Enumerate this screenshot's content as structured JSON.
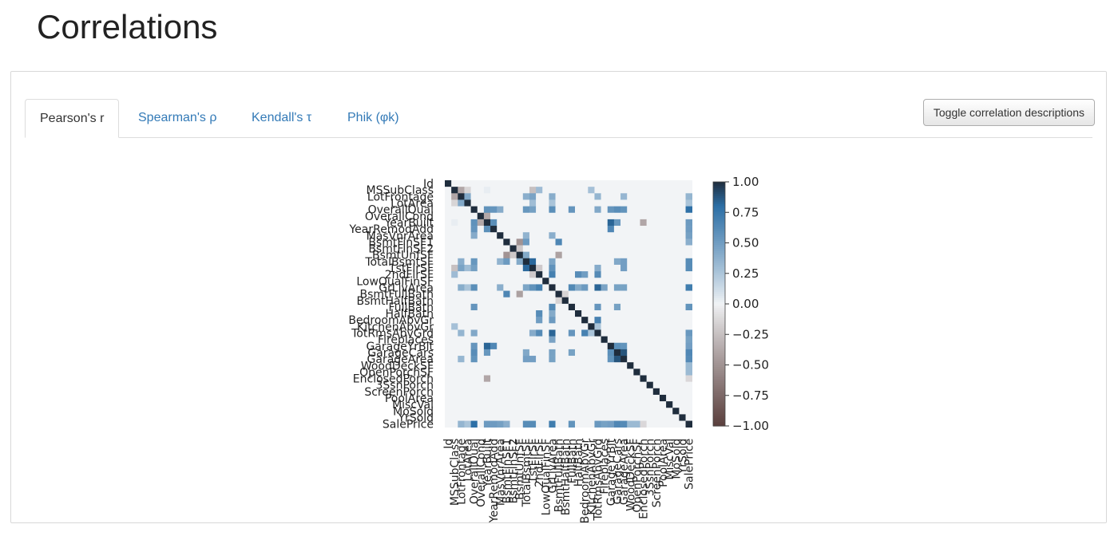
{
  "page": {
    "title": "Correlations"
  },
  "tabs": [
    {
      "label": "Pearson's r",
      "active": true
    },
    {
      "label": "Spearman's ρ",
      "active": false
    },
    {
      "label": "Kendall's τ",
      "active": false
    },
    {
      "label": "Phik (φk)",
      "active": false
    }
  ],
  "toggle_button": {
    "label": "Toggle correlation descriptions"
  },
  "chart_data": {
    "type": "heatmap",
    "title": "",
    "variables": [
      "Id",
      "MSSubClass",
      "LotFrontage",
      "LotArea",
      "OverallQual",
      "OverallCond",
      "YearBuilt",
      "YearRemodAdd",
      "MasVnrArea",
      "BsmtFinSF1",
      "BsmtFinSF2",
      "BsmtUnfSF",
      "TotalBsmtSF",
      "1stFlrSF",
      "2ndFlrSF",
      "LowQualFinSF",
      "GrLivArea",
      "BsmtFullBath",
      "BsmtHalfBath",
      "FullBath",
      "HalfBath",
      "BedroomAbvGr",
      "KitchenAbvGr",
      "TotRmsAbvGrd",
      "Fireplaces",
      "GarageYrBlt",
      "GarageCars",
      "GarageArea",
      "WoodDeckSF",
      "OpenPorchSF",
      "EnclosedPorch",
      "3SsnPorch",
      "ScreenPorch",
      "PoolArea",
      "MiscVal",
      "MoSold",
      "YrSold",
      "SalePrice"
    ],
    "correlations": [
      {
        "a": "MSSubClass",
        "b": "LotFrontage",
        "r": -0.39
      },
      {
        "a": "MSSubClass",
        "b": "LotArea",
        "r": -0.14
      },
      {
        "a": "MSSubClass",
        "b": "YearBuilt",
        "r": 0.03
      },
      {
        "a": "MSSubClass",
        "b": "1stFlrSF",
        "r": -0.25
      },
      {
        "a": "MSSubClass",
        "b": "2ndFlrSF",
        "r": 0.31
      },
      {
        "a": "MSSubClass",
        "b": "KitchenAbvGr",
        "r": 0.28
      },
      {
        "a": "LotFrontage",
        "b": "LotArea",
        "r": 0.43
      },
      {
        "a": "LotFrontage",
        "b": "TotalBsmtSF",
        "r": 0.39
      },
      {
        "a": "LotFrontage",
        "b": "1stFlrSF",
        "r": 0.46
      },
      {
        "a": "LotFrontage",
        "b": "GrLivArea",
        "r": 0.4
      },
      {
        "a": "LotFrontage",
        "b": "TotRmsAbvGrd",
        "r": 0.35
      },
      {
        "a": "LotFrontage",
        "b": "GarageArea",
        "r": 0.34
      },
      {
        "a": "LotFrontage",
        "b": "SalePrice",
        "r": 0.35
      },
      {
        "a": "LotArea",
        "b": "1stFlrSF",
        "r": 0.3
      },
      {
        "a": "LotArea",
        "b": "GrLivArea",
        "r": 0.26
      },
      {
        "a": "LotArea",
        "b": "SalePrice",
        "r": 0.26
      },
      {
        "a": "OverallQual",
        "b": "YearBuilt",
        "r": 0.57
      },
      {
        "a": "OverallQual",
        "b": "YearRemodAdd",
        "r": 0.55
      },
      {
        "a": "OverallQual",
        "b": "MasVnrArea",
        "r": 0.41
      },
      {
        "a": "OverallQual",
        "b": "TotalBsmtSF",
        "r": 0.54
      },
      {
        "a": "OverallQual",
        "b": "1stFlrSF",
        "r": 0.48
      },
      {
        "a": "OverallQual",
        "b": "GrLivArea",
        "r": 0.59
      },
      {
        "a": "OverallQual",
        "b": "FullBath",
        "r": 0.55
      },
      {
        "a": "OverallQual",
        "b": "TotRmsAbvGrd",
        "r": 0.43
      },
      {
        "a": "OverallQual",
        "b": "GarageYrBlt",
        "r": 0.55
      },
      {
        "a": "OverallQual",
        "b": "GarageCars",
        "r": 0.6
      },
      {
        "a": "OverallQual",
        "b": "GarageArea",
        "r": 0.56
      },
      {
        "a": "OverallQual",
        "b": "SalePrice",
        "r": 0.79
      },
      {
        "a": "OverallCond",
        "b": "YearBuilt",
        "r": -0.38
      },
      {
        "a": "YearBuilt",
        "b": "YearRemodAdd",
        "r": 0.59
      },
      {
        "a": "YearBuilt",
        "b": "GarageYrBlt",
        "r": 0.83
      },
      {
        "a": "YearBuilt",
        "b": "GarageCars",
        "r": 0.54
      },
      {
        "a": "YearBuilt",
        "b": "EnclosedPorch",
        "r": -0.39
      },
      {
        "a": "YearBuilt",
        "b": "SalePrice",
        "r": 0.52
      },
      {
        "a": "YearRemodAdd",
        "b": "GarageYrBlt",
        "r": 0.64
      },
      {
        "a": "YearRemodAdd",
        "b": "SalePrice",
        "r": 0.51
      },
      {
        "a": "MasVnrArea",
        "b": "TotalBsmtSF",
        "r": 0.36
      },
      {
        "a": "MasVnrArea",
        "b": "GrLivArea",
        "r": 0.39
      },
      {
        "a": "MasVnrArea",
        "b": "SalePrice",
        "r": 0.48
      },
      {
        "a": "BsmtFinSF1",
        "b": "BsmtUnfSF",
        "r": -0.5
      },
      {
        "a": "BsmtFinSF1",
        "b": "TotalBsmtSF",
        "r": 0.52
      },
      {
        "a": "BsmtFinSF1",
        "b": "BsmtFullBath",
        "r": 0.65
      },
      {
        "a": "BsmtFinSF1",
        "b": "SalePrice",
        "r": 0.39
      },
      {
        "a": "BsmtFinSF2",
        "b": "BsmtUnfSF",
        "r": -0.21
      },
      {
        "a": "BsmtUnfSF",
        "b": "TotalBsmtSF",
        "r": 0.42
      },
      {
        "a": "BsmtUnfSF",
        "b": "BsmtFullBath",
        "r": -0.42
      },
      {
        "a": "TotalBsmtSF",
        "b": "1stFlrSF",
        "r": 0.82
      },
      {
        "a": "TotalBsmtSF",
        "b": "GrLivArea",
        "r": 0.45
      },
      {
        "a": "TotalBsmtSF",
        "b": "GarageCars",
        "r": 0.43
      },
      {
        "a": "TotalBsmtSF",
        "b": "GarageArea",
        "r": 0.49
      },
      {
        "a": "TotalBsmtSF",
        "b": "SalePrice",
        "r": 0.61
      },
      {
        "a": "1stFlrSF",
        "b": "2ndFlrSF",
        "r": -0.2
      },
      {
        "a": "1stFlrSF",
        "b": "GrLivArea",
        "r": 0.57
      },
      {
        "a": "1stFlrSF",
        "b": "TotRmsAbvGrd",
        "r": 0.41
      },
      {
        "a": "1stFlrSF",
        "b": "GarageArea",
        "r": 0.49
      },
      {
        "a": "1stFlrSF",
        "b": "SalePrice",
        "r": 0.61
      },
      {
        "a": "2ndFlrSF",
        "b": "GrLivArea",
        "r": 0.69
      },
      {
        "a": "2ndFlrSF",
        "b": "HalfBath",
        "r": 0.61
      },
      {
        "a": "2ndFlrSF",
        "b": "BedroomAbvGr",
        "r": 0.5
      },
      {
        "a": "2ndFlrSF",
        "b": "TotRmsAbvGrd",
        "r": 0.62
      },
      {
        "a": "GrLivArea",
        "b": "FullBath",
        "r": 0.63
      },
      {
        "a": "GrLivArea",
        "b": "HalfBath",
        "r": 0.42
      },
      {
        "a": "GrLivArea",
        "b": "BedroomAbvGr",
        "r": 0.52
      },
      {
        "a": "GrLivArea",
        "b": "TotRmsAbvGrd",
        "r": 0.83
      },
      {
        "a": "GrLivArea",
        "b": "Fireplaces",
        "r": 0.46
      },
      {
        "a": "GrLivArea",
        "b": "GarageCars",
        "r": 0.47
      },
      {
        "a": "GrLivArea",
        "b": "GarageArea",
        "r": 0.47
      },
      {
        "a": "GrLivArea",
        "b": "SalePrice",
        "r": 0.71
      },
      {
        "a": "BsmtFullBath",
        "b": "BsmtHalfBath",
        "r": -0.15
      },
      {
        "a": "FullBath",
        "b": "TotRmsAbvGrd",
        "r": 0.55
      },
      {
        "a": "FullBath",
        "b": "GarageCars",
        "r": 0.47
      },
      {
        "a": "FullBath",
        "b": "SalePrice",
        "r": 0.56
      },
      {
        "a": "BedroomAbvGr",
        "b": "TotRmsAbvGrd",
        "r": 0.68
      },
      {
        "a": "KitchenAbvGr",
        "b": "TotRmsAbvGrd",
        "r": 0.26
      },
      {
        "a": "TotRmsAbvGrd",
        "b": "SalePrice",
        "r": 0.53
      },
      {
        "a": "Fireplaces",
        "b": "SalePrice",
        "r": 0.47
      },
      {
        "a": "GarageYrBlt",
        "b": "GarageCars",
        "r": 0.59
      },
      {
        "a": "GarageYrBlt",
        "b": "GarageArea",
        "r": 0.56
      },
      {
        "a": "GarageYrBlt",
        "b": "SalePrice",
        "r": 0.49
      },
      {
        "a": "GarageCars",
        "b": "GarageArea",
        "r": 0.88
      },
      {
        "a": "GarageCars",
        "b": "SalePrice",
        "r": 0.64
      },
      {
        "a": "GarageArea",
        "b": "SalePrice",
        "r": 0.62
      },
      {
        "a": "WoodDeckSF",
        "b": "SalePrice",
        "r": 0.32
      },
      {
        "a": "OpenPorchSF",
        "b": "SalePrice",
        "r": 0.32
      },
      {
        "a": "EnclosedPorch",
        "b": "SalePrice",
        "r": -0.13
      }
    ],
    "colorbar": {
      "ticks": [
        "1.00",
        "0.75",
        "0.50",
        "0.25",
        "0.00",
        "−0.25",
        "−0.50",
        "−0.75",
        "−1.00"
      ],
      "range": [
        -1,
        1
      ],
      "colors": {
        "pos": "#2c6fa6",
        "neutral": "#f2f4f6",
        "neg": "#5a3f3d",
        "max": "#1f2d3d"
      }
    }
  }
}
